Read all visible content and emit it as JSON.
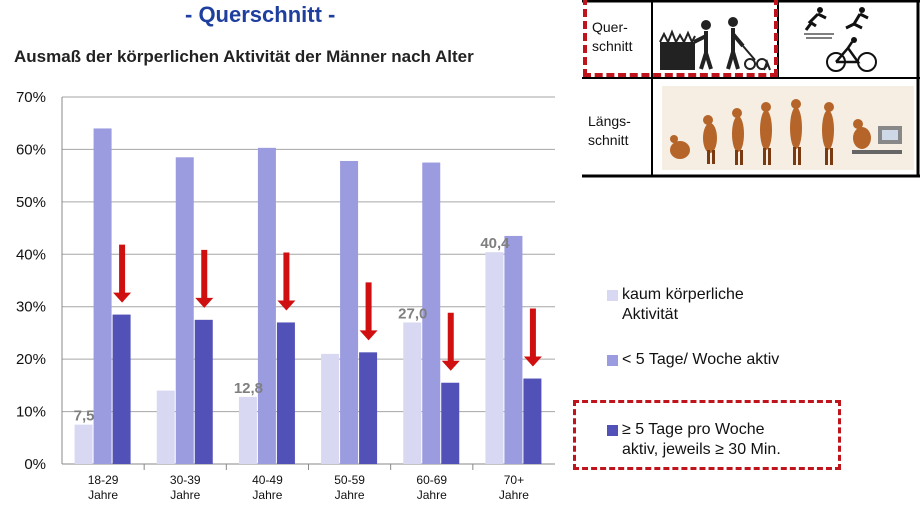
{
  "slide_header": "- Querschnitt -",
  "panel": {
    "quer_label_1": "Quer-",
    "quer_label_2": "schnitt",
    "laengs_label_1": "Längs-",
    "laengs_label_2": "schnitt"
  },
  "colors": {
    "series1": "#d8d8f2",
    "series2": "#9b9be0",
    "series3": "#5151b8",
    "arrow": "#d01010",
    "dash": "#c0141c",
    "header": "#1f3f9f"
  },
  "chart_data": {
    "type": "bar",
    "title": "Ausmaß der körperlichen Aktivität der Männer nach Alter",
    "categories": [
      [
        "18-29",
        "Jahre"
      ],
      [
        "30-39",
        "Jahre"
      ],
      [
        "40-49",
        "Jahre"
      ],
      [
        "50-59",
        "Jahre"
      ],
      [
        "60-69",
        "Jahre"
      ],
      [
        "70+",
        "Jahre"
      ]
    ],
    "ylim": [
      0,
      70
    ],
    "yticks": [
      "0%",
      "10%",
      "20%",
      "30%",
      "40%",
      "50%",
      "60%",
      "70%"
    ],
    "grid": true,
    "legend_position": "right",
    "series": [
      {
        "name": "kaum körperliche Aktivität",
        "values": [
          7.5,
          14.0,
          12.8,
          21.0,
          27.0,
          40.4
        ],
        "data_labels": [
          "7,5",
          "",
          "12,8",
          "",
          "27,0",
          "40,4"
        ]
      },
      {
        "name": "< 5 Tage/ Woche aktiv",
        "values": [
          64.0,
          58.5,
          60.3,
          57.8,
          57.5,
          43.5
        ]
      },
      {
        "name": "≥ 5 Tage pro Woche aktiv, jeweils ≥ 30 Min.",
        "values": [
          28.5,
          27.5,
          27.0,
          21.3,
          15.5,
          16.3
        ]
      }
    ]
  },
  "legend": {
    "item1_line1": "kaum körperliche",
    "item1_line2": "Aktivität",
    "item2": "< 5 Tage/ Woche aktiv",
    "item3_line1": "≥ 5 Tage pro Woche",
    "item3_line2": "aktiv, jeweils ≥ 30 Min."
  }
}
